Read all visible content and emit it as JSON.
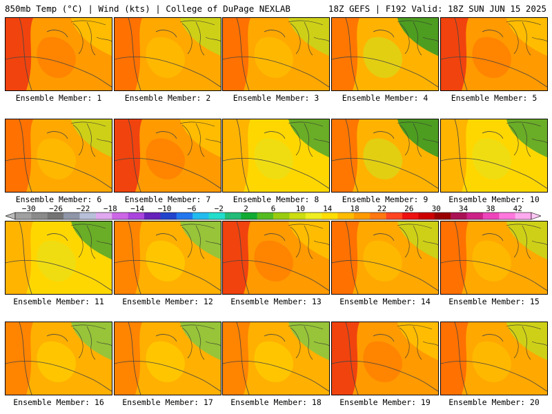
{
  "header": {
    "left": "850mb Temp (°C) | Wind (kts) | College of DuPage NEXLAB",
    "right": "18Z GEFS | F192 Valid: 18Z SUN JUN 15 2025"
  },
  "colorbar": {
    "labels": [
      "−30",
      "−26",
      "−22",
      "−18",
      "−14",
      "−10",
      "−6",
      "−2",
      "2",
      "6",
      "10",
      "14",
      "18",
      "22",
      "26",
      "30",
      "34",
      "38",
      "42"
    ],
    "values": [
      -30,
      -26,
      -22,
      -18,
      -14,
      -10,
      -6,
      -2,
      2,
      6,
      10,
      14,
      18,
      22,
      26,
      30,
      34,
      38,
      42
    ],
    "colors": [
      "#a0a0a0",
      "#8a8a8a",
      "#747474",
      "#8e96a8",
      "#b7c0d8",
      "#e0a8f0",
      "#cc66e6",
      "#aa44dd",
      "#6622bb",
      "#2244cc",
      "#2277ee",
      "#22bbee",
      "#22ddcc",
      "#22bb77",
      "#11aa33",
      "#55bb22",
      "#99cc11",
      "#ccdd11",
      "#eeee22",
      "#ffdd00",
      "#ffbb00",
      "#ff9900",
      "#ff7711",
      "#ff4422",
      "#ee1111",
      "#cc0000",
      "#990000",
      "#aa1155",
      "#cc2288",
      "#ee44bb",
      "#ff77dd",
      "#ffaaee"
    ]
  },
  "panels": [
    {
      "caption": "Ensemble Member: 1",
      "theme": "hot"
    },
    {
      "caption": "Ensemble Member: 2",
      "theme": "warm"
    },
    {
      "caption": "Ensemble Member: 3",
      "theme": "warm"
    },
    {
      "caption": "Ensemble Member: 4",
      "theme": "green-ne"
    },
    {
      "caption": "Ensemble Member: 5",
      "theme": "hot"
    },
    {
      "caption": "Ensemble Member: 6",
      "theme": "warm"
    },
    {
      "caption": "Ensemble Member: 7",
      "theme": "hot"
    },
    {
      "caption": "Ensemble Member: 8",
      "theme": "cool"
    },
    {
      "caption": "Ensemble Member: 9",
      "theme": "green-ne"
    },
    {
      "caption": "Ensemble Member: 10",
      "theme": "cool"
    },
    {
      "caption": "Ensemble Member: 11",
      "theme": "cool"
    },
    {
      "caption": "Ensemble Member: 12",
      "theme": "mild"
    },
    {
      "caption": "Ensemble Member: 13",
      "theme": "hot"
    },
    {
      "caption": "Ensemble Member: 14",
      "theme": "warm"
    },
    {
      "caption": "Ensemble Member: 15",
      "theme": "warm"
    },
    {
      "caption": "Ensemble Member: 16",
      "theme": "mild"
    },
    {
      "caption": "Ensemble Member: 17",
      "theme": "mild"
    },
    {
      "caption": "Ensemble Member: 18",
      "theme": "mild"
    },
    {
      "caption": "Ensemble Member: 19",
      "theme": "hot"
    },
    {
      "caption": "Ensemble Member: 20",
      "theme": "warm"
    }
  ]
}
